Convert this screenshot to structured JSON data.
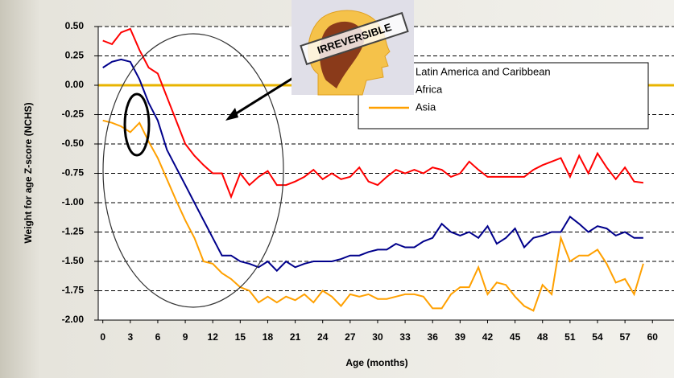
{
  "chart_data": {
    "type": "line",
    "x_label": "Age (months)",
    "y_label": "Weight for age Z-score (NCHS)",
    "annotation": "IRREVERSIBLE",
    "x": [
      0,
      1,
      2,
      3,
      4,
      5,
      6,
      7,
      8,
      9,
      10,
      11,
      12,
      13,
      14,
      15,
      16,
      17,
      18,
      19,
      20,
      21,
      22,
      23,
      24,
      25,
      26,
      27,
      28,
      29,
      30,
      31,
      32,
      33,
      34,
      35,
      36,
      37,
      38,
      39,
      40,
      41,
      42,
      43,
      44,
      45,
      46,
      47,
      48,
      49,
      50,
      51,
      52,
      53,
      54,
      55,
      56,
      57,
      58,
      59
    ],
    "series": [
      {
        "name": "Latin America and Caribbean",
        "color": "#ff0000",
        "values": [
          0.38,
          0.35,
          0.45,
          0.48,
          0.3,
          0.15,
          0.1,
          -0.1,
          -0.3,
          -0.5,
          -0.6,
          -0.68,
          -0.75,
          -0.75,
          -0.95,
          -0.75,
          -0.85,
          -0.78,
          -0.73,
          -0.85,
          -0.85,
          -0.82,
          -0.78,
          -0.72,
          -0.8,
          -0.75,
          -0.8,
          -0.78,
          -0.7,
          -0.82,
          -0.85,
          -0.78,
          -0.72,
          -0.75,
          -0.72,
          -0.75,
          -0.7,
          -0.72,
          -0.78,
          -0.75,
          -0.65,
          -0.72,
          -0.78,
          -0.78,
          -0.78,
          -0.78,
          -0.78,
          -0.72,
          -0.68,
          -0.65,
          -0.62,
          -0.78,
          -0.6,
          -0.75,
          -0.58,
          -0.7,
          -0.8,
          -0.7,
          -0.82,
          -0.83
        ]
      },
      {
        "name": "Africa",
        "color": "#00008b",
        "values": [
          0.15,
          0.2,
          0.22,
          0.2,
          0.05,
          -0.15,
          -0.3,
          -0.55,
          -0.7,
          -0.85,
          -1.0,
          -1.15,
          -1.3,
          -1.45,
          -1.45,
          -1.5,
          -1.52,
          -1.55,
          -1.5,
          -1.58,
          -1.5,
          -1.55,
          -1.52,
          -1.5,
          -1.5,
          -1.5,
          -1.48,
          -1.45,
          -1.45,
          -1.42,
          -1.4,
          -1.4,
          -1.35,
          -1.38,
          -1.38,
          -1.33,
          -1.3,
          -1.18,
          -1.25,
          -1.28,
          -1.25,
          -1.3,
          -1.2,
          -1.35,
          -1.3,
          -1.22,
          -1.38,
          -1.3,
          -1.28,
          -1.25,
          -1.25,
          -1.12,
          -1.18,
          -1.25,
          -1.2,
          -1.22,
          -1.28,
          -1.25,
          -1.3,
          -1.3
        ]
      },
      {
        "name": "Asia",
        "color": "#ffa000",
        "values": [
          -0.3,
          -0.32,
          -0.35,
          -0.4,
          -0.32,
          -0.48,
          -0.62,
          -0.8,
          -0.98,
          -1.15,
          -1.3,
          -1.5,
          -1.52,
          -1.6,
          -1.65,
          -1.72,
          -1.75,
          -1.85,
          -1.8,
          -1.85,
          -1.8,
          -1.83,
          -1.78,
          -1.85,
          -1.75,
          -1.8,
          -1.88,
          -1.78,
          -1.8,
          -1.78,
          -1.82,
          -1.82,
          -1.8,
          -1.78,
          -1.78,
          -1.8,
          -1.9,
          -1.9,
          -1.78,
          -1.72,
          -1.72,
          -1.55,
          -1.78,
          -1.68,
          -1.7,
          -1.8,
          -1.88,
          -1.92,
          -1.7,
          -1.78,
          -1.3,
          -1.5,
          -1.45,
          -1.45,
          -1.4,
          -1.52,
          -1.68,
          -1.65,
          -1.78,
          -1.52
        ]
      }
    ],
    "xlim": [
      -0.5,
      62
    ],
    "ylim": [
      -2,
      0.5
    ],
    "xticks": [
      0,
      3,
      6,
      9,
      12,
      15,
      18,
      21,
      24,
      27,
      30,
      33,
      36,
      39,
      42,
      45,
      48,
      51,
      54,
      57,
      60
    ],
    "yticks": [
      {
        "value": -2,
        "label": "-2.00"
      },
      {
        "value": -1.75,
        "label": "-1.75"
      },
      {
        "value": -1.5,
        "label": "-1.50"
      },
      {
        "value": -1.25,
        "label": "-1.25"
      },
      {
        "value": -1,
        "label": "-1.00"
      },
      {
        "value": -0.75,
        "label": "-0.75"
      },
      {
        "value": -0.5,
        "label": "-0.50"
      },
      {
        "value": -0.25,
        "label": "-0.25"
      },
      {
        "value": 0,
        "label": "0.00"
      },
      {
        "value": 0.25,
        "label": "0.25"
      },
      {
        "value": 0.5,
        "label": "0.50"
      }
    ],
    "grid": true,
    "zero_line_color": "#e8b400",
    "legend": "upper right"
  }
}
